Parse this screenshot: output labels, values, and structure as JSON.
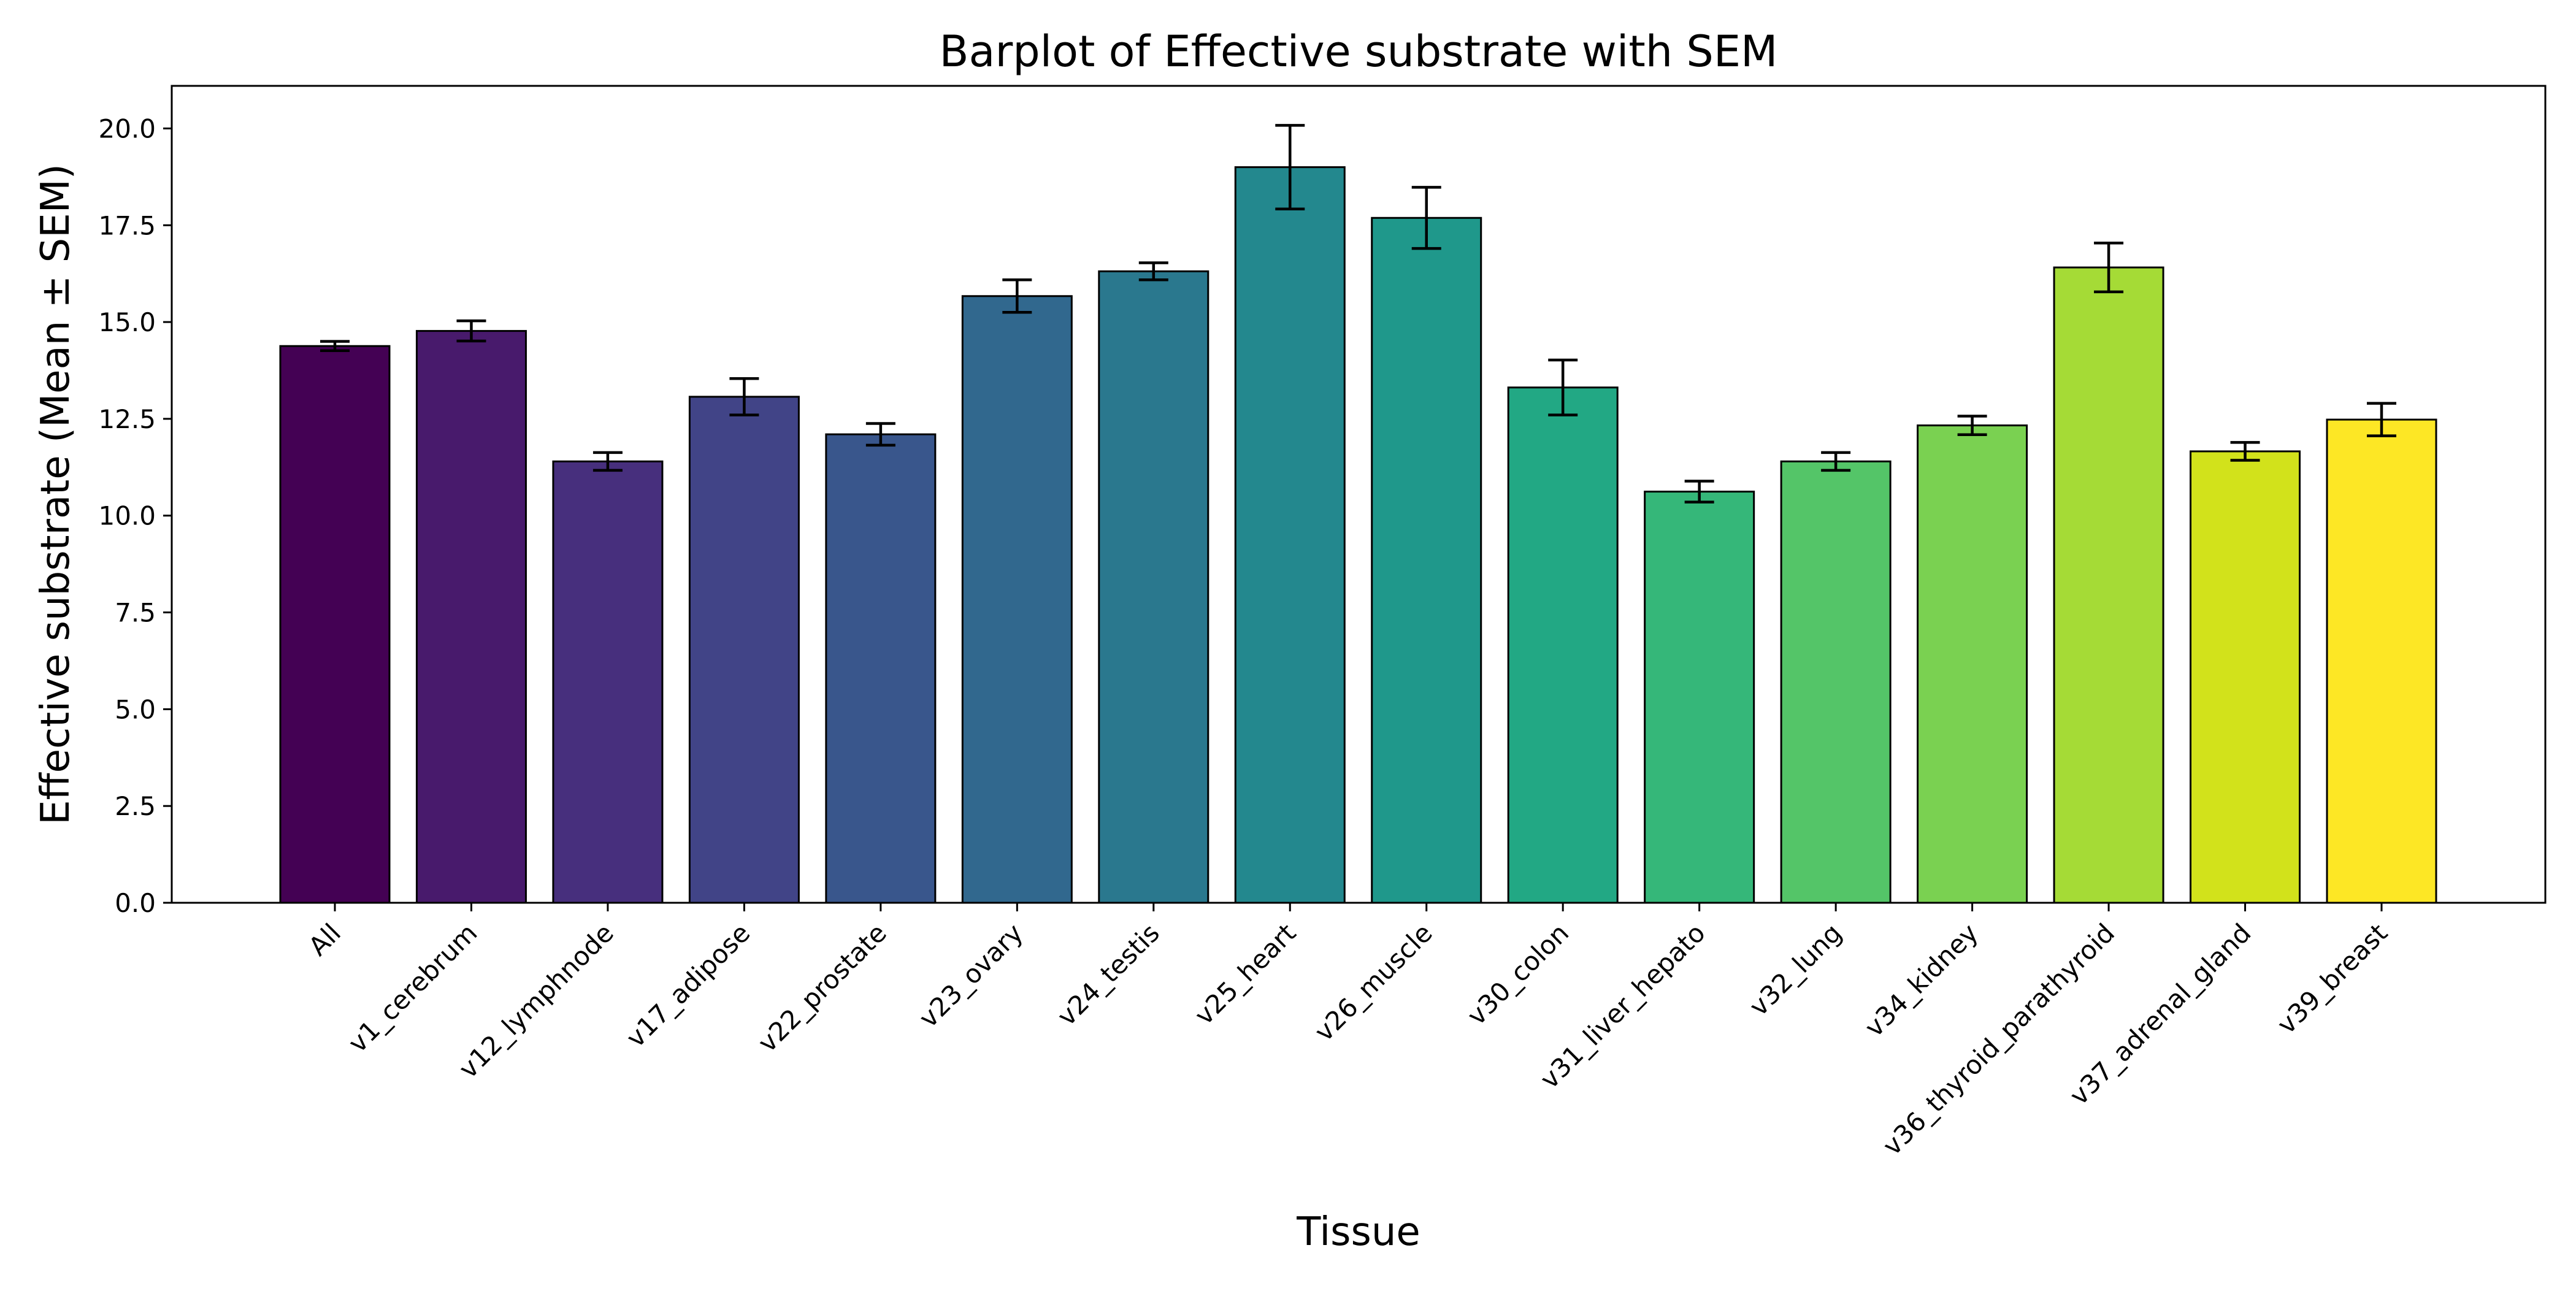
{
  "chart_data": {
    "type": "bar",
    "title": "Barplot of Effective substrate with SEM",
    "xlabel": "Tissue",
    "ylabel": "Effective substrate (Mean ± SEM)",
    "ylim": [
      0,
      21.1
    ],
    "yticks": [
      "0.0",
      "2.5",
      "5.0",
      "7.5",
      "10.0",
      "12.5",
      "15.0",
      "17.5",
      "20.0"
    ],
    "grid": false,
    "error_bars": "SEM",
    "categories": [
      "All",
      "v1_cerebrum",
      "v12_lymphnode",
      "v17_adipose",
      "v22_prostate",
      "v23_ovary",
      "v24_testis",
      "v25_heart",
      "v26_muscle",
      "v30_colon",
      "v31_liver_hepato",
      "v32_lung",
      "v34_kidney",
      "v36_thyroid_parathyroid",
      "v37_adrenal_gland",
      "v39_breast"
    ],
    "values": [
      14.38,
      14.77,
      11.4,
      13.07,
      12.1,
      15.67,
      16.31,
      19.0,
      17.69,
      13.31,
      10.62,
      11.4,
      12.33,
      16.41,
      11.66,
      12.48
    ],
    "errors": [
      0.12,
      0.26,
      0.23,
      0.47,
      0.28,
      0.42,
      0.22,
      1.08,
      0.79,
      0.71,
      0.27,
      0.23,
      0.24,
      0.63,
      0.23,
      0.42
    ],
    "colors": [
      "#440154",
      "#481a6c",
      "#472f7d",
      "#414487",
      "#39568c",
      "#31688e",
      "#2a788e",
      "#23888e",
      "#1f988b",
      "#22a884",
      "#35b779",
      "#54c568",
      "#7ad151",
      "#a5db36",
      "#d2e21b",
      "#fde725"
    ]
  }
}
